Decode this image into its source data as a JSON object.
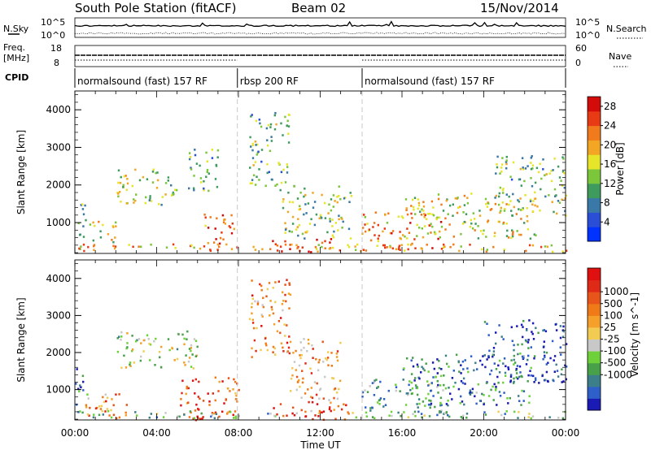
{
  "header": {
    "station": "South Pole Station (fitACF)",
    "beam": "Beam 02",
    "date": "15/Nov/2014"
  },
  "status_panel": {
    "nsky_label": "N.Sky",
    "nsearch_label": "N.Search",
    "sky_ticks": [
      "10^5",
      "10^0"
    ],
    "freq_label_1": "Freq.",
    "freq_label_2": "[MHz]",
    "freq_ticks": [
      "18",
      "8"
    ],
    "nave_label": "Nave",
    "nave_ticks": [
      "60",
      "0"
    ],
    "cpid_label": "CPID",
    "cpid_segments": [
      {
        "label": "normalsound (fast) 157 RF",
        "start_hr": 0.0,
        "end_hr": 7.95
      },
      {
        "label": "rbsp 200 RF",
        "start_hr": 7.95,
        "end_hr": 14.05
      },
      {
        "label": "normalsound (fast) 157 RF",
        "start_hr": 14.05,
        "end_hr": 24.0
      }
    ]
  },
  "chart_data": [
    {
      "type": "heatmap",
      "parameter": "power",
      "xlabel": "Time UT",
      "ylabel": "Slant Range [km]",
      "xlim": [
        0,
        24
      ],
      "ylim": [
        180,
        4500
      ],
      "x_ticks": [
        "00:00",
        "04:00",
        "08:00",
        "12:00",
        "16:00",
        "20:00",
        "00:00"
      ],
      "y_ticks": [
        1000,
        2000,
        3000,
        4000
      ],
      "colorbar": {
        "label": "Power [dB]",
        "ticks": [
          4,
          8,
          12,
          16,
          20,
          24,
          28
        ],
        "range": [
          0,
          30
        ],
        "colors": [
          "#0033ff",
          "#2a4fd6",
          "#3a78a8",
          "#3f9a5e",
          "#7cc63c",
          "#e6e52a",
          "#f2a623",
          "#f07a1c",
          "#e83a14",
          "#d40b0b"
        ]
      },
      "scatter_regions": [
        {
          "t": [
            0.0,
            0.5
          ],
          "r": [
            200,
            1600
          ],
          "level": 0.4
        },
        {
          "t": [
            0.5,
            2.0
          ],
          "r": [
            500,
            1100
          ],
          "level": 0.55
        },
        {
          "t": [
            2.0,
            5.0
          ],
          "r": [
            1500,
            2500
          ],
          "level": 0.5
        },
        {
          "t": [
            5.5,
            7.0
          ],
          "r": [
            1800,
            3000
          ],
          "level": 0.35
        },
        {
          "t": [
            6.3,
            7.9
          ],
          "r": [
            400,
            1300
          ],
          "level": 0.8
        },
        {
          "t": [
            8.5,
            10.5
          ],
          "r": [
            2000,
            4000
          ],
          "level": 0.4
        },
        {
          "t": [
            9.5,
            12.5
          ],
          "r": [
            200,
            600
          ],
          "level": 0.9
        },
        {
          "t": [
            10.0,
            13.5
          ],
          "r": [
            600,
            2000
          ],
          "level": 0.45
        },
        {
          "t": [
            14.0,
            18.0
          ],
          "r": [
            300,
            1300
          ],
          "level": 0.7
        },
        {
          "t": [
            16.0,
            22.5
          ],
          "r": [
            600,
            1800
          ],
          "level": 0.55
        },
        {
          "t": [
            20.5,
            24.0
          ],
          "r": [
            1200,
            2800
          ],
          "level": 0.4
        },
        {
          "t": [
            0.0,
            24.0
          ],
          "r": [
            250,
            450
          ],
          "level": 0.65
        }
      ]
    },
    {
      "type": "heatmap",
      "parameter": "velocity",
      "xlabel": "Time UT",
      "ylabel": "Slant Range [km]",
      "xlim": [
        0,
        24
      ],
      "ylim": [
        180,
        4500
      ],
      "x_ticks": [
        "00:00",
        "04:00",
        "08:00",
        "12:00",
        "16:00",
        "20:00",
        "00:00"
      ],
      "y_ticks": [
        1000,
        2000,
        3000,
        4000
      ],
      "colorbar": {
        "label": "Velocity [m s^-1]",
        "ticks": [
          "1000",
          "500",
          "100",
          "25",
          "-25",
          "-100",
          "-500",
          "-1000"
        ],
        "colors": [
          "#1a1ab4",
          "#2f5fc8",
          "#3c7f8a",
          "#48a04a",
          "#6fd13a",
          "#c8c8c8",
          "#f2cc52",
          "#f5a02a",
          "#f07a18",
          "#e8551a",
          "#e02a18",
          "#e01010"
        ]
      },
      "scatter_regions": [
        {
          "t": [
            0.0,
            0.6
          ],
          "r": [
            600,
            1600
          ],
          "level": 0.15
        },
        {
          "t": [
            0.5,
            2.5
          ],
          "r": [
            200,
            1000
          ],
          "level": 0.7
        },
        {
          "t": [
            2.0,
            6.0
          ],
          "r": [
            1600,
            2600
          ],
          "level": 0.45
        },
        {
          "t": [
            5.0,
            8.0
          ],
          "r": [
            200,
            1400
          ],
          "level": 0.8
        },
        {
          "t": [
            8.5,
            10.5
          ],
          "r": [
            1800,
            4000
          ],
          "level": 0.7
        },
        {
          "t": [
            9.5,
            13.5
          ],
          "r": [
            200,
            700
          ],
          "level": 0.85
        },
        {
          "t": [
            10.5,
            13.0
          ],
          "r": [
            700,
            2400
          ],
          "level": 0.65
        },
        {
          "t": [
            14.0,
            18.0
          ],
          "r": [
            300,
            1300
          ],
          "level": 0.3
        },
        {
          "t": [
            16.0,
            22.5
          ],
          "r": [
            600,
            2000
          ],
          "level": 0.2
        },
        {
          "t": [
            20.0,
            24.0
          ],
          "r": [
            1200,
            2900
          ],
          "level": 0.1
        },
        {
          "t": [
            0.0,
            24.0
          ],
          "r": [
            250,
            450
          ],
          "level": 0.35
        }
      ]
    }
  ]
}
